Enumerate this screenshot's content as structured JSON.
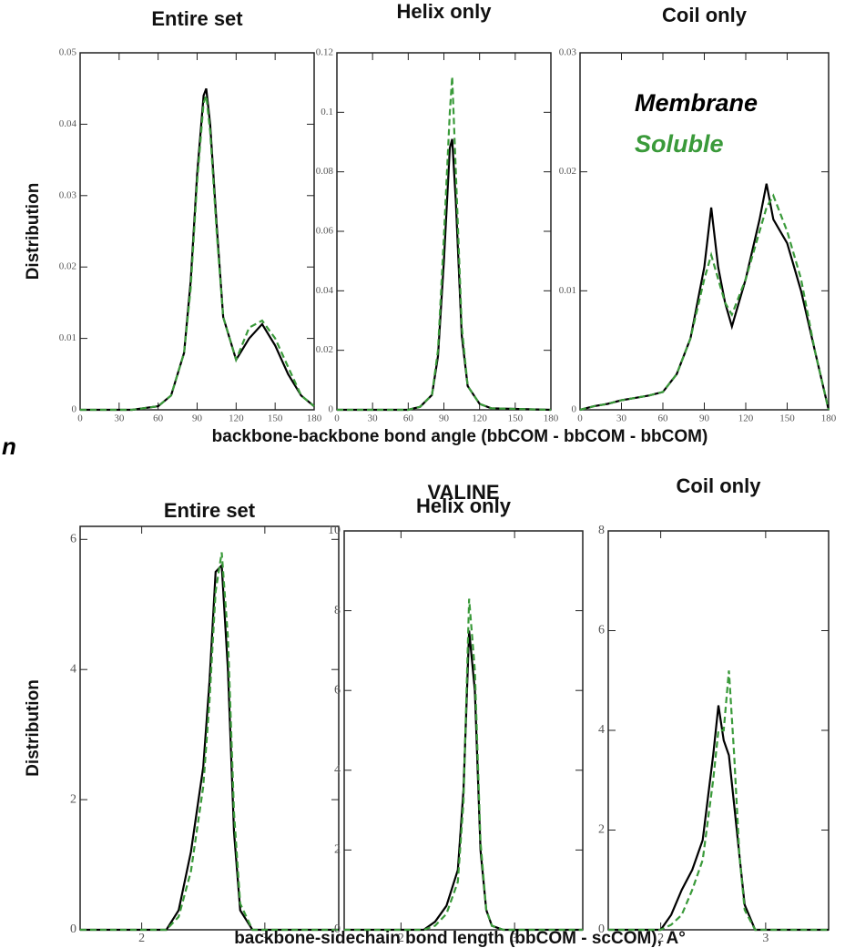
{
  "side_text": "n",
  "chart_data": [
    {
      "type": "line",
      "title": "Entire set",
      "ylabel": "Distribution",
      "x": [
        0,
        40,
        60,
        70,
        80,
        85,
        90,
        95,
        97,
        100,
        105,
        110,
        120,
        130,
        140,
        150,
        160,
        170,
        180
      ],
      "series": [
        {
          "color": "#000000",
          "dash": false,
          "values": [
            0,
            0,
            0.0005,
            0.002,
            0.008,
            0.018,
            0.033,
            0.044,
            0.045,
            0.04,
            0.026,
            0.013,
            0.007,
            0.01,
            0.012,
            0.009,
            0.005,
            0.002,
            0.0005
          ]
        },
        {
          "color": "#3a9a3a",
          "dash": true,
          "values": [
            0,
            0,
            0.0005,
            0.002,
            0.008,
            0.017,
            0.032,
            0.043,
            0.044,
            0.039,
            0.025,
            0.013,
            0.007,
            0.0115,
            0.0125,
            0.01,
            0.006,
            0.002,
            0.0005
          ]
        }
      ],
      "xlim": [
        0,
        180
      ],
      "xticks": [
        0,
        30,
        60,
        90,
        120,
        150,
        180
      ],
      "ylim": [
        0,
        0.05
      ],
      "yticks": [
        0,
        0.01,
        0.02,
        0.03,
        0.04,
        0.05
      ]
    },
    {
      "type": "line",
      "title": "Helix only",
      "xlabel": "backbone-backbone bond angle (bbCOM - bbCOM - bbCOM)",
      "x": [
        0,
        60,
        70,
        80,
        85,
        90,
        95,
        97,
        100,
        105,
        110,
        120,
        130,
        180
      ],
      "series": [
        {
          "color": "#000000",
          "dash": false,
          "values": [
            0,
            0,
            0.001,
            0.005,
            0.018,
            0.05,
            0.088,
            0.091,
            0.07,
            0.025,
            0.008,
            0.002,
            0.0005,
            0
          ]
        },
        {
          "color": "#3a9a3a",
          "dash": true,
          "values": [
            0,
            0,
            0.001,
            0.005,
            0.02,
            0.058,
            0.1,
            0.112,
            0.08,
            0.028,
            0.008,
            0.002,
            0.0005,
            0
          ]
        }
      ],
      "xlim": [
        0,
        180
      ],
      "xticks": [
        0,
        30,
        60,
        90,
        120,
        150,
        180
      ],
      "ylim": [
        0,
        0.12
      ],
      "yticks": [
        0,
        0.02,
        0.04,
        0.06,
        0.08,
        0.1,
        0.12
      ]
    },
    {
      "type": "line",
      "title": "Coil only",
      "x": [
        0,
        10,
        20,
        30,
        40,
        50,
        60,
        70,
        80,
        90,
        95,
        100,
        105,
        110,
        120,
        130,
        135,
        140,
        150,
        160,
        170,
        180
      ],
      "series": [
        {
          "name": "Membrane",
          "color": "#000000",
          "dash": false,
          "values": [
            0,
            0.0003,
            0.0005,
            0.0008,
            0.001,
            0.0012,
            0.0015,
            0.003,
            0.006,
            0.012,
            0.017,
            0.012,
            0.009,
            0.007,
            0.011,
            0.016,
            0.019,
            0.016,
            0.014,
            0.01,
            0.005,
            0
          ]
        },
        {
          "name": "Soluble",
          "color": "#3a9a3a",
          "dash": true,
          "values": [
            0,
            0.0003,
            0.0005,
            0.0008,
            0.001,
            0.0012,
            0.0015,
            0.003,
            0.006,
            0.011,
            0.013,
            0.011,
            0.009,
            0.008,
            0.011,
            0.015,
            0.017,
            0.018,
            0.015,
            0.011,
            0.005,
            0
          ]
        }
      ],
      "xlim": [
        0,
        180
      ],
      "xticks": [
        0,
        30,
        60,
        90,
        120,
        150,
        180
      ],
      "ylim": [
        0,
        0.03
      ],
      "yticks": [
        0,
        0.01,
        0.02,
        0.03
      ]
    },
    {
      "type": "line",
      "title": "Entire set",
      "ylabel": "Distribution",
      "x": [
        1.5,
        2.2,
        2.3,
        2.4,
        2.5,
        2.55,
        2.6,
        2.65,
        2.7,
        2.75,
        2.8,
        2.9,
        3.6
      ],
      "series": [
        {
          "color": "#000000",
          "dash": false,
          "values": [
            0,
            0,
            0.3,
            1.2,
            2.5,
            3.8,
            5.5,
            5.6,
            4.0,
            1.5,
            0.3,
            0,
            0
          ]
        },
        {
          "color": "#3a9a3a",
          "dash": true,
          "values": [
            0,
            0,
            0.2,
            0.9,
            2.2,
            3.5,
            5.2,
            5.8,
            4.5,
            1.8,
            0.4,
            0,
            0
          ]
        }
      ],
      "xlim": [
        1.5,
        3.6
      ],
      "xticks": [
        2,
        3
      ],
      "ylim": [
        0,
        6.2
      ],
      "yticks": [
        0,
        2,
        4,
        6
      ]
    },
    {
      "type": "line",
      "title": "Helix only",
      "supertitle": "VALINE",
      "xlabel": "backbone-sidechain bond length (bbCOM - scCOM), A°",
      "x": [
        1.5,
        2.2,
        2.3,
        2.4,
        2.5,
        2.55,
        2.6,
        2.65,
        2.7,
        2.75,
        2.8,
        2.9,
        3.6
      ],
      "series": [
        {
          "color": "#000000",
          "dash": false,
          "values": [
            0,
            0,
            0.2,
            0.6,
            1.5,
            3.5,
            7.5,
            6.0,
            2.0,
            0.5,
            0.1,
            0,
            0
          ]
        },
        {
          "color": "#3a9a3a",
          "dash": true,
          "values": [
            0,
            0,
            0.1,
            0.4,
            1.2,
            3.2,
            8.3,
            6.5,
            2.2,
            0.5,
            0.1,
            0,
            0
          ]
        }
      ],
      "xlim": [
        1.5,
        3.6
      ],
      "xticks": [
        2,
        3
      ],
      "ylim": [
        0,
        10
      ],
      "yticks": [
        0,
        2,
        4,
        6,
        8,
        10
      ]
    },
    {
      "type": "line",
      "title": "Coil only",
      "x": [
        1.5,
        2.0,
        2.1,
        2.2,
        2.3,
        2.4,
        2.5,
        2.55,
        2.6,
        2.65,
        2.7,
        2.75,
        2.8,
        2.9,
        3.6
      ],
      "series": [
        {
          "color": "#000000",
          "dash": false,
          "values": [
            0,
            0,
            0.3,
            0.8,
            1.2,
            1.8,
            3.5,
            4.5,
            3.8,
            3.5,
            2.5,
            1.5,
            0.5,
            0,
            0
          ]
        },
        {
          "color": "#3a9a3a",
          "dash": true,
          "values": [
            0,
            0,
            0.1,
            0.3,
            0.8,
            1.4,
            3.0,
            4.0,
            4.0,
            5.2,
            3.5,
            1.5,
            0.4,
            0,
            0
          ]
        }
      ],
      "xlim": [
        1.5,
        3.6
      ],
      "xticks": [
        2,
        3
      ],
      "ylim": [
        0,
        8
      ],
      "yticks": [
        0,
        2,
        4,
        6,
        8
      ]
    }
  ]
}
